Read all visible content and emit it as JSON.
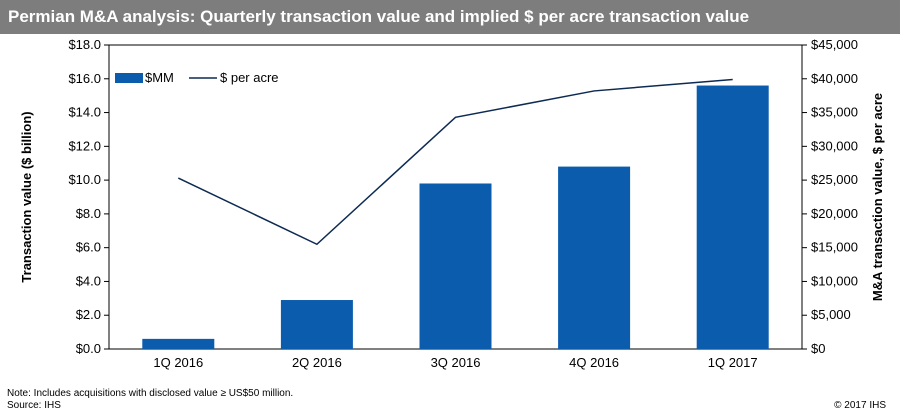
{
  "header": {
    "title": "Permian M&A analysis: Quarterly transaction value and implied $ per acre transaction value"
  },
  "footer": {
    "note": "Note: Includes acquisitions with disclosed value ≥ US$50 million.",
    "source": "Source: IHS",
    "copyright": "© 2017 IHS"
  },
  "colors": {
    "bar": "#0b5cad",
    "line": "#0d2a52",
    "title_bar": "#7d7d7d"
  },
  "chart_data": {
    "type": "bar",
    "title": "Permian M&A analysis: Quarterly transaction value and implied $ per acre transaction value",
    "categories": [
      "1Q 2016",
      "2Q 2016",
      "3Q 2016",
      "4Q 2016",
      "1Q 2017"
    ],
    "series": [
      {
        "name": "$MM",
        "type": "bar",
        "axis": "left",
        "values": [
          0.6,
          2.9,
          9.8,
          10.8,
          15.6
        ]
      },
      {
        "name": "$ per acre",
        "type": "line",
        "axis": "right",
        "values": [
          25300,
          15500,
          34300,
          38200,
          39900
        ]
      }
    ],
    "ylabel": "Transaction value ($ billion)",
    "ylim": [
      0,
      18
    ],
    "yticks": [
      "$0.0",
      "$2.0",
      "$4.0",
      "$6.0",
      "$8.0",
      "$10.0",
      "$12.0",
      "$14.0",
      "$16.0",
      "$18.0"
    ],
    "y2label": "M&A transaction value, $ per acre",
    "y2lim": [
      0,
      45000
    ],
    "y2ticks": [
      "$0",
      "$5,000",
      "$10,000",
      "$15,000",
      "$20,000",
      "$25,000",
      "$30,000",
      "$35,000",
      "$40,000",
      "$45,000"
    ],
    "grid": false,
    "legend": "top-left"
  }
}
